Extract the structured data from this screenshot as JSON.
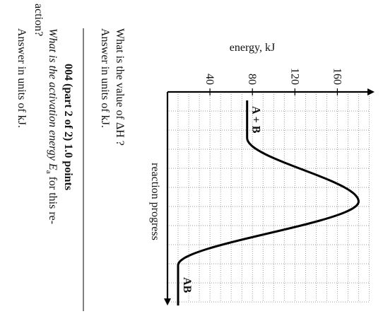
{
  "chart_data": {
    "type": "line",
    "y_label": "energy, kJ",
    "x_label": "reaction progress",
    "reactants_label": "A + B",
    "products_label": "AB",
    "series": [
      {
        "name": "energy",
        "color": "#000000",
        "values": [
          75,
          180,
          10
        ]
      }
    ],
    "ylim": [
      0,
      195
    ],
    "yticks": [
      40,
      80,
      120,
      160
    ],
    "grid": true
  },
  "question1": {
    "line1": "What is the value of ΔH ?",
    "line2": "Answer in units of kJ."
  },
  "question2": {
    "header": "004 (part 2 of 2) 1.0 points",
    "line1": "What is the activation energy E",
    "subscript": "a",
    "line1_end": " for this re-",
    "line2": "action?",
    "line3": "Answer in units of kJ."
  }
}
